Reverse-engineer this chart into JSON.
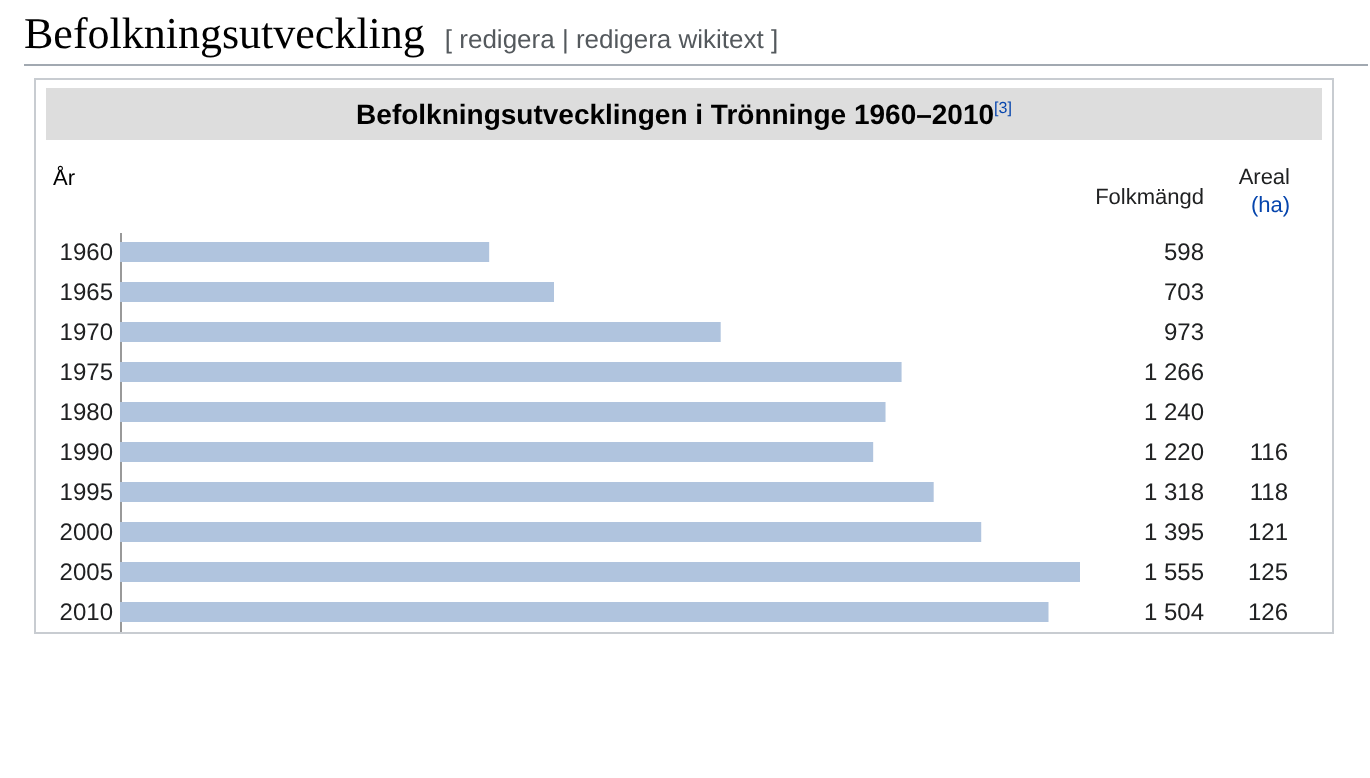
{
  "chart_data": {
    "type": "bar",
    "orientation": "horizontal",
    "title": "Befolkningsutveckling",
    "subtitle": "Befolkningsutvecklingen i Trönninge 1960–2010$^{[3]}$",
    "ylabel": "År",
    "categories": [
      "1960",
      "1965",
      "1970",
      "1975",
      "1980",
      "1990",
      "1995",
      "2000",
      "2005",
      "2010"
    ],
    "series": [
      {
        "name": "Folkmängd",
        "color": "#b0c4de",
        "values": [
          598,
          703,
          973,
          1266,
          1240,
          1220,
          1318,
          1395,
          1555,
          1504
        ],
        "value_labels": [
          "598",
          "703",
          "973",
          "1 266",
          "1 240",
          "1 220",
          "1 318",
          "1 395",
          "1 555",
          "1 504"
        ]
      }
    ],
    "annotations": [
      "[ redigera | redigera wikitext ]",
      "Areal",
      "(ha)",
      "116",
      "118",
      "121",
      "125",
      "126"
    ]
  }
}
